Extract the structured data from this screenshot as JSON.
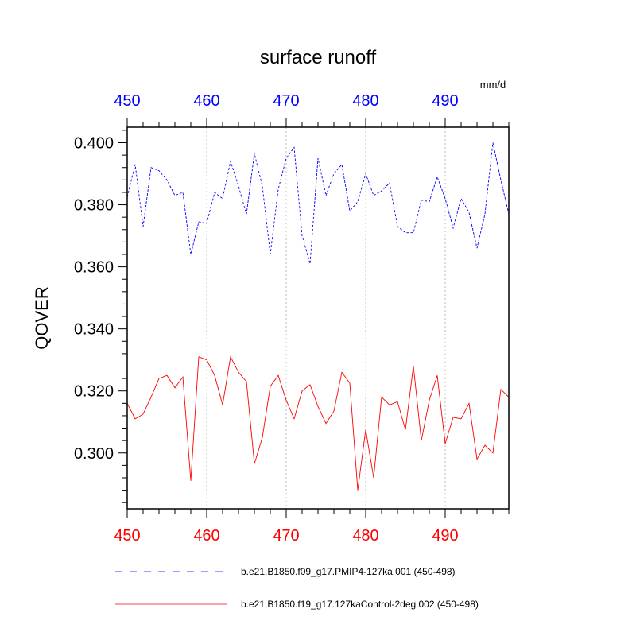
{
  "chart_data": {
    "type": "line",
    "title": "surface runoff",
    "ylabel": "QOVER",
    "units_label": "mm/d",
    "xlim": [
      450,
      498
    ],
    "ylim": [
      0.282,
      0.405
    ],
    "x_ticks": [
      "450",
      "460",
      "470",
      "480",
      "490"
    ],
    "y_ticks": [
      "0.400",
      "0.380",
      "0.360",
      "0.340",
      "0.320",
      "0.300"
    ],
    "grid": "vertical dotted lines at major x ticks",
    "colors": {
      "series_0": "#0000ff",
      "series_1": "#ff0000",
      "top_axis": "#0000ff",
      "bottom_axis": "#ff0000"
    },
    "x": [
      450,
      451,
      452,
      453,
      454,
      455,
      456,
      457,
      458,
      459,
      460,
      461,
      462,
      463,
      464,
      465,
      466,
      467,
      468,
      469,
      470,
      471,
      472,
      473,
      474,
      475,
      476,
      477,
      478,
      479,
      480,
      481,
      482,
      483,
      484,
      485,
      486,
      487,
      488,
      489,
      490,
      491,
      492,
      493,
      494,
      495,
      496,
      497,
      498
    ],
    "series": [
      {
        "name": "b.e21.B1850.f09_g17.PMIP4-127ka.001 (450-498)",
        "style": "dashed",
        "values": [
          0.3825,
          0.393,
          0.373,
          0.392,
          0.391,
          0.388,
          0.383,
          0.384,
          0.364,
          0.3745,
          0.374,
          0.384,
          0.382,
          0.394,
          0.386,
          0.377,
          0.3965,
          0.386,
          0.364,
          0.385,
          0.395,
          0.3985,
          0.37,
          0.361,
          0.395,
          0.383,
          0.39,
          0.393,
          0.378,
          0.381,
          0.39,
          0.383,
          0.3845,
          0.387,
          0.373,
          0.371,
          0.371,
          0.3815,
          0.381,
          0.389,
          0.382,
          0.3725,
          0.382,
          0.3775,
          0.366,
          0.377,
          0.4,
          0.388,
          0.377
        ]
      },
      {
        "name": "b.e21.B1850.f19_g17.127kaControl-2deg.002 (450-498)",
        "style": "solid",
        "values": [
          0.316,
          0.311,
          0.3125,
          0.318,
          0.324,
          0.325,
          0.321,
          0.3245,
          0.291,
          0.331,
          0.33,
          0.325,
          0.3155,
          0.331,
          0.326,
          0.323,
          0.2965,
          0.305,
          0.3215,
          0.325,
          0.317,
          0.311,
          0.32,
          0.322,
          0.315,
          0.3095,
          0.3135,
          0.326,
          0.3225,
          0.288,
          0.3075,
          0.292,
          0.318,
          0.3155,
          0.3165,
          0.3075,
          0.328,
          0.304,
          0.317,
          0.325,
          0.303,
          0.3115,
          0.311,
          0.316,
          0.298,
          0.3025,
          0.3,
          0.3205,
          0.318
        ]
      }
    ]
  }
}
